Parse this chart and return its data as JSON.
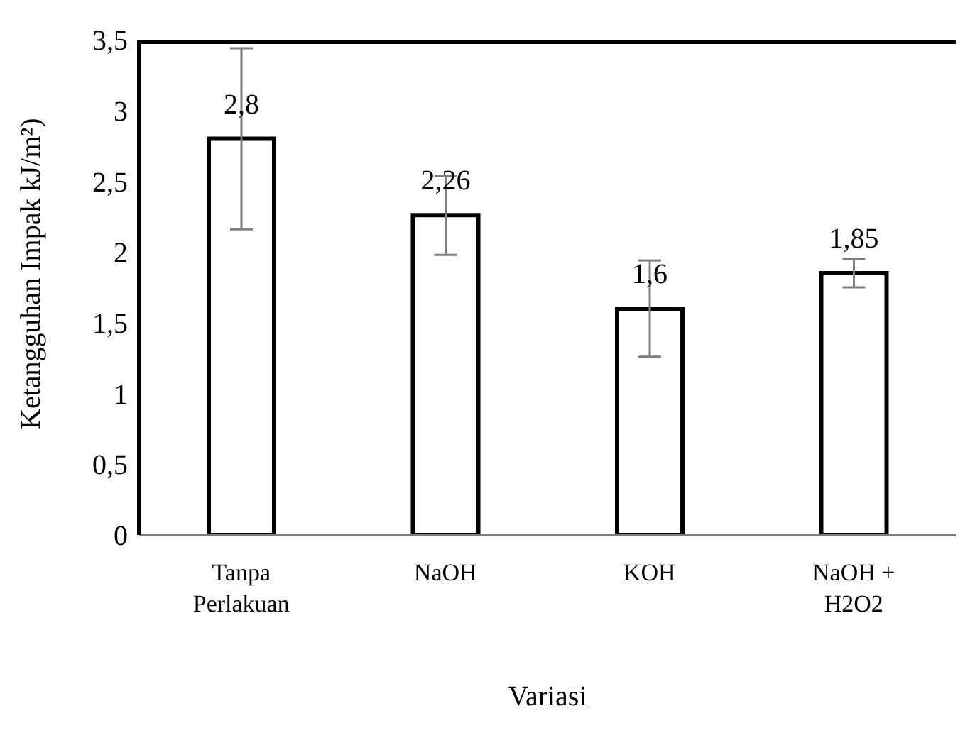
{
  "chart_data": {
    "type": "bar",
    "xlabel": "Variasi",
    "ylabel": "Ketangguhan Impak kJ/m²)",
    "categories": [
      "Tanpa Perlakuan",
      "NaOH",
      "KOH",
      "NaOH + H2O2"
    ],
    "values": [
      2.8,
      2.26,
      1.6,
      1.85
    ],
    "color": "#ffffff",
    "errors": [
      0.64,
      0.28,
      0.34,
      0.1
    ],
    "value_labels": [
      "2,8",
      "2,26",
      "1,6",
      "1,85"
    ],
    "ylim": [
      0,
      3.5
    ],
    "yticks": [
      0,
      {
        "value": 0.5,
        "label": "0,5"
      },
      1,
      {
        "value": 1.5,
        "label": "1,5"
      },
      2,
      {
        "value": 2.5,
        "label": "2,5"
      },
      3,
      {
        "value": 3.5,
        "label": "3,5"
      }
    ],
    "grid": false,
    "legend": false
  }
}
